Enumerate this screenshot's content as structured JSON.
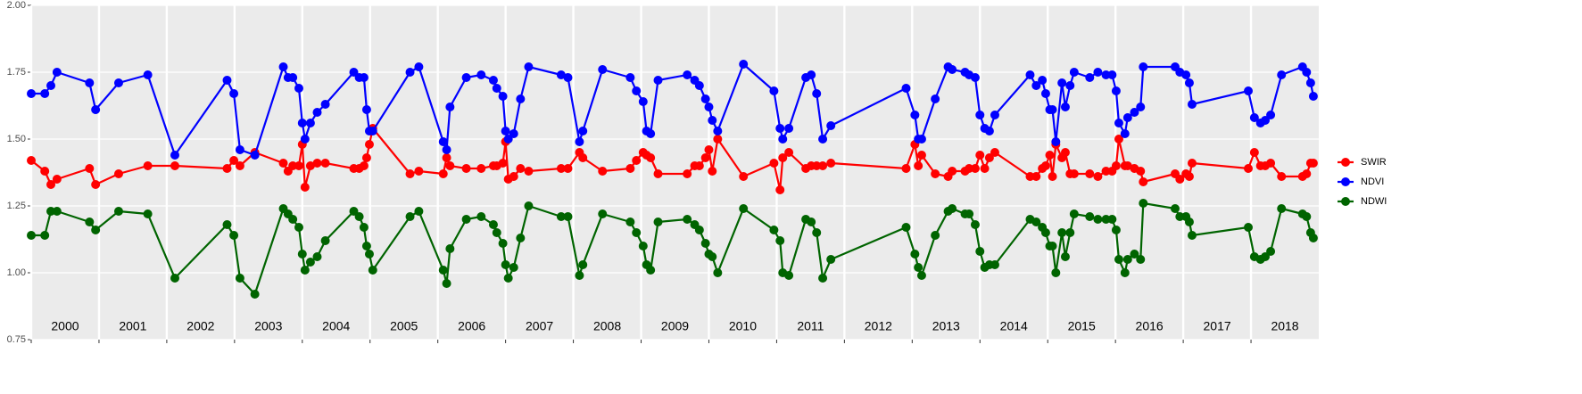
{
  "chart_data": {
    "type": "line",
    "x": [
      2000.0,
      2000.2,
      2000.29,
      2000.38,
      2000.86,
      2000.95,
      2001.29,
      2001.72,
      2002.12,
      2002.89,
      2002.99,
      2003.08,
      2003.3,
      2003.72,
      2003.79,
      2003.86,
      2003.95,
      2004.0,
      2004.04,
      2004.12,
      2004.22,
      2004.34,
      2004.76,
      2004.84,
      2004.91,
      2004.95,
      2004.99,
      2005.04,
      2005.59,
      2005.72,
      2006.08,
      2006.13,
      2006.18,
      2006.42,
      2006.64,
      2006.82,
      2006.87,
      2006.96,
      2007.0,
      2007.04,
      2007.12,
      2007.22,
      2007.34,
      2007.82,
      2007.92,
      2008.09,
      2008.14,
      2008.43,
      2008.84,
      2008.93,
      2009.03,
      2009.08,
      2009.14,
      2009.25,
      2009.68,
      2009.79,
      2009.86,
      2009.95,
      2010.0,
      2010.05,
      2010.13,
      2010.51,
      2010.96,
      2011.05,
      2011.09,
      2011.18,
      2011.43,
      2011.51,
      2011.59,
      2011.68,
      2011.8,
      2012.91,
      2013.04,
      2013.09,
      2013.14,
      2013.34,
      2013.53,
      2013.59,
      2013.78,
      2013.84,
      2013.93,
      2014.0,
      2014.07,
      2014.14,
      2014.22,
      2014.74,
      2014.83,
      2014.92,
      2014.97,
      2015.03,
      2015.07,
      2015.12,
      2015.21,
      2015.26,
      2015.33,
      2015.39,
      2015.62,
      2015.74,
      2015.86,
      2015.95,
      2016.01,
      2016.05,
      2016.14,
      2016.18,
      2016.28,
      2016.37,
      2016.41,
      2016.88,
      2016.95,
      2017.04,
      2017.09,
      2017.13,
      2017.96,
      2018.05,
      2018.14,
      2018.21,
      2018.29,
      2018.45,
      2018.76,
      2018.82,
      2018.88,
      2018.92
    ],
    "series": [
      {
        "name": "SWIR",
        "color": "#ff0000",
        "values": [
          1.42,
          1.38,
          1.33,
          1.35,
          1.39,
          1.33,
          1.37,
          1.4,
          1.4,
          1.39,
          1.42,
          1.4,
          1.45,
          1.41,
          1.38,
          1.4,
          1.4,
          1.48,
          1.32,
          1.4,
          1.41,
          1.41,
          1.39,
          1.39,
          1.4,
          1.43,
          1.48,
          1.54,
          1.37,
          1.38,
          1.37,
          1.43,
          1.4,
          1.39,
          1.39,
          1.4,
          1.4,
          1.41,
          1.49,
          1.35,
          1.36,
          1.39,
          1.38,
          1.39,
          1.39,
          1.45,
          1.43,
          1.38,
          1.39,
          1.42,
          1.45,
          1.44,
          1.43,
          1.37,
          1.37,
          1.4,
          1.4,
          1.43,
          1.46,
          1.38,
          1.5,
          1.36,
          1.41,
          1.31,
          1.43,
          1.45,
          1.39,
          1.4,
          1.4,
          1.4,
          1.41,
          1.39,
          1.48,
          1.4,
          1.44,
          1.37,
          1.36,
          1.38,
          1.38,
          1.39,
          1.39,
          1.44,
          1.39,
          1.43,
          1.45,
          1.36,
          1.36,
          1.39,
          1.4,
          1.44,
          1.36,
          1.48,
          1.43,
          1.45,
          1.37,
          1.37,
          1.37,
          1.36,
          1.38,
          1.38,
          1.4,
          1.5,
          1.4,
          1.4,
          1.39,
          1.38,
          1.34,
          1.37,
          1.35,
          1.37,
          1.36,
          1.41,
          1.39,
          1.45,
          1.4,
          1.4,
          1.41,
          1.36,
          1.36,
          1.37,
          1.41,
          1.41
        ]
      },
      {
        "name": "NDVI",
        "color": "#0000ff",
        "values": [
          1.67,
          1.67,
          1.7,
          1.75,
          1.71,
          1.61,
          1.71,
          1.74,
          1.44,
          1.72,
          1.67,
          1.46,
          1.44,
          1.77,
          1.73,
          1.73,
          1.69,
          1.56,
          1.5,
          1.56,
          1.6,
          1.63,
          1.75,
          1.73,
          1.73,
          1.61,
          1.53,
          1.53,
          1.75,
          1.77,
          1.49,
          1.46,
          1.62,
          1.73,
          1.74,
          1.72,
          1.69,
          1.66,
          1.53,
          1.5,
          1.52,
          1.65,
          1.77,
          1.74,
          1.73,
          1.49,
          1.53,
          1.76,
          1.73,
          1.68,
          1.64,
          1.53,
          1.52,
          1.72,
          1.74,
          1.72,
          1.7,
          1.65,
          1.62,
          1.57,
          1.53,
          1.78,
          1.68,
          1.54,
          1.5,
          1.54,
          1.73,
          1.74,
          1.67,
          1.5,
          1.55,
          1.69,
          1.59,
          1.5,
          1.5,
          1.65,
          1.77,
          1.76,
          1.75,
          1.74,
          1.73,
          1.59,
          1.54,
          1.53,
          1.59,
          1.74,
          1.7,
          1.72,
          1.67,
          1.61,
          1.61,
          1.49,
          1.71,
          1.62,
          1.7,
          1.75,
          1.73,
          1.75,
          1.74,
          1.74,
          1.68,
          1.56,
          1.52,
          1.58,
          1.6,
          1.62,
          1.77,
          1.77,
          1.75,
          1.74,
          1.71,
          1.63,
          1.68,
          1.58,
          1.56,
          1.57,
          1.59,
          1.74,
          1.77,
          1.75,
          1.71,
          1.66
        ]
      },
      {
        "name": "NDWI",
        "color": "#006400",
        "values": [
          1.14,
          1.14,
          1.23,
          1.23,
          1.19,
          1.16,
          1.23,
          1.22,
          0.98,
          1.18,
          1.14,
          0.98,
          0.92,
          1.24,
          1.22,
          1.2,
          1.17,
          1.07,
          1.01,
          1.04,
          1.06,
          1.12,
          1.23,
          1.21,
          1.17,
          1.1,
          1.07,
          1.01,
          1.21,
          1.23,
          1.01,
          0.96,
          1.09,
          1.2,
          1.21,
          1.18,
          1.15,
          1.11,
          1.03,
          0.98,
          1.02,
          1.13,
          1.25,
          1.21,
          1.21,
          0.99,
          1.03,
          1.22,
          1.19,
          1.15,
          1.1,
          1.03,
          1.01,
          1.19,
          1.2,
          1.18,
          1.16,
          1.11,
          1.07,
          1.06,
          1.0,
          1.24,
          1.16,
          1.12,
          1.0,
          0.99,
          1.2,
          1.19,
          1.15,
          0.98,
          1.05,
          1.17,
          1.07,
          1.02,
          0.99,
          1.14,
          1.23,
          1.24,
          1.22,
          1.22,
          1.18,
          1.08,
          1.02,
          1.03,
          1.03,
          1.2,
          1.19,
          1.17,
          1.15,
          1.1,
          1.1,
          1.0,
          1.15,
          1.06,
          1.15,
          1.22,
          1.21,
          1.2,
          1.2,
          1.2,
          1.16,
          1.05,
          1.0,
          1.05,
          1.07,
          1.05,
          1.26,
          1.24,
          1.21,
          1.21,
          1.19,
          1.14,
          1.17,
          1.06,
          1.05,
          1.06,
          1.08,
          1.24,
          1.22,
          1.21,
          1.15,
          1.13
        ]
      }
    ],
    "xlim": [
      2000,
      2019
    ],
    "xticks": [
      2000,
      2001,
      2002,
      2003,
      2004,
      2005,
      2006,
      2007,
      2008,
      2009,
      2010,
      2011,
      2012,
      2013,
      2014,
      2015,
      2016,
      2017,
      2018
    ],
    "year_labels": [
      "2000",
      "2001",
      "2002",
      "2003",
      "2004",
      "2005",
      "2006",
      "2007",
      "2008",
      "2009",
      "2010",
      "2011",
      "2012",
      "2013",
      "2014",
      "2015",
      "2016",
      "2017",
      "2018"
    ],
    "ylim": [
      0.75,
      2.0
    ],
    "yticks": [
      {
        "value": 0.75,
        "label": "0.75"
      },
      {
        "value": 1.0,
        "label": "1.00"
      },
      {
        "value": 1.25,
        "label": "1.25"
      },
      {
        "value": 1.5,
        "label": "1.50"
      },
      {
        "value": 1.75,
        "label": "1.75"
      },
      {
        "value": 2.0,
        "label": "2.00"
      }
    ],
    "grid": true,
    "legend": "right"
  }
}
